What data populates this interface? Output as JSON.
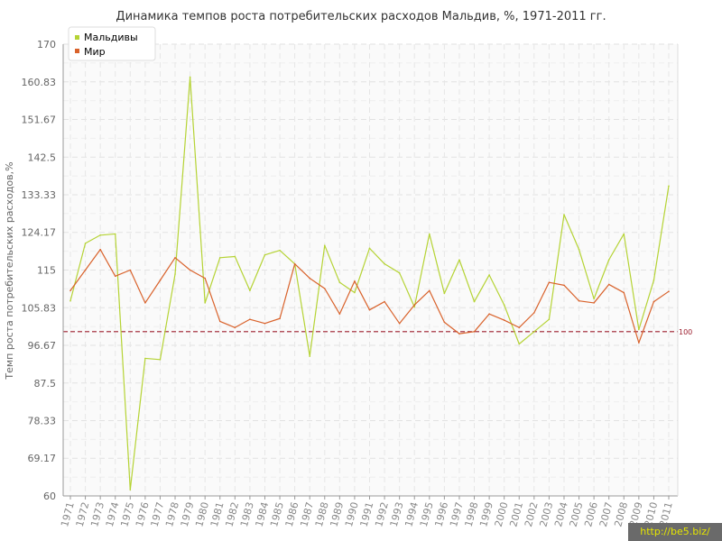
{
  "chart_data": {
    "type": "line",
    "title": "Динамика темпов роста потребительских расходов Мальдив, %, 1971-2011 гг.",
    "xlabel": "",
    "ylabel": "Темп роста потребительских расходов,%",
    "ylim": [
      60,
      170
    ],
    "yticks": [
      "60",
      "69.17",
      "78.33",
      "87.5",
      "96.67",
      "105.83",
      "115",
      "124.17",
      "133.33",
      "142.5",
      "151.67",
      "160.83",
      "170"
    ],
    "categories": [
      "1971",
      "1972",
      "1973",
      "1974",
      "1975",
      "1976",
      "1977",
      "1978",
      "1979",
      "1980",
      "1981",
      "1982",
      "1983",
      "1984",
      "1985",
      "1986",
      "1987",
      "1988",
      "1989",
      "1990",
      "1991",
      "1992",
      "1993",
      "1994",
      "1995",
      "1996",
      "1997",
      "1998",
      "1999",
      "2000",
      "2001",
      "2002",
      "2003",
      "2004",
      "2005",
      "2006",
      "2007",
      "2008",
      "2009",
      "2010",
      "2011"
    ],
    "series": [
      {
        "name": "Мальдивы",
        "color": "#b5d334",
        "values": [
          107.5,
          121.5,
          123.5,
          123.8,
          61.5,
          93.5,
          93.2,
          114.0,
          162.0,
          107.0,
          118.0,
          118.3,
          110.0,
          118.7,
          119.8,
          116.5,
          94.0,
          121.0,
          112.0,
          109.5,
          120.3,
          116.5,
          114.3,
          106.0,
          123.8,
          109.3,
          117.5,
          107.3,
          113.8,
          106.5,
          97.0,
          100.0,
          103.0,
          128.5,
          120.0,
          108.0,
          117.5,
          123.8,
          100.5,
          112.5,
          135.5
        ]
      },
      {
        "name": "Мир",
        "color": "#d9622b",
        "values": [
          110.0,
          115.0,
          120.0,
          113.5,
          115.0,
          107.0,
          112.5,
          118.0,
          115.0,
          113.0,
          102.5,
          101.0,
          103.0,
          102.0,
          103.2,
          116.5,
          113.0,
          110.5,
          104.3,
          112.3,
          105.3,
          107.3,
          102.0,
          106.5,
          110.0,
          102.3,
          99.5,
          100.0,
          104.3,
          102.8,
          101.0,
          104.6,
          112.0,
          111.3,
          107.5,
          107.0,
          111.5,
          109.5,
          97.3,
          107.3,
          109.8
        ]
      }
    ],
    "reference_line": {
      "value": 100,
      "label": "100",
      "color": "#9b1c2c"
    },
    "grid": true,
    "legend": "top-left"
  },
  "watermark": "http://be5.biz/"
}
